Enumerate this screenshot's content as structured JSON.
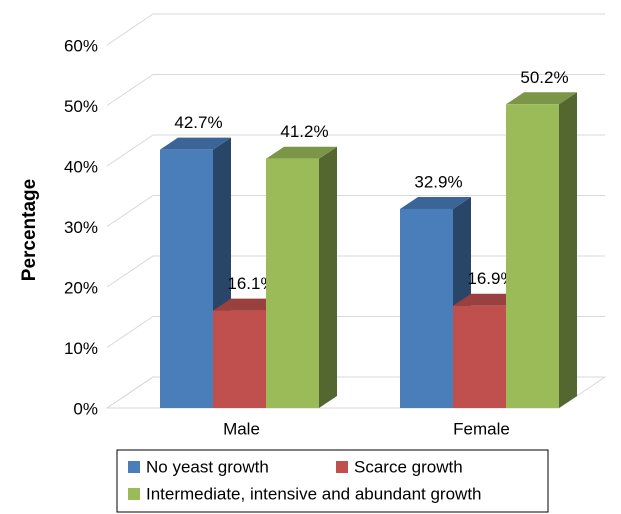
{
  "chart_data": {
    "type": "bar3d",
    "y_label": "Percentage",
    "categories": [
      "Male",
      "Female"
    ],
    "series": [
      {
        "name": "No yeast growth",
        "color": "#4a7ebb",
        "values": [
          42.7,
          32.9
        ],
        "value_labels": [
          "42.7%",
          "32.9%"
        ]
      },
      {
        "name": "Scarce growth",
        "color": "#c0504d",
        "values": [
          16.1,
          16.9
        ],
        "value_labels": [
          "16.1%",
          "16.9%"
        ]
      },
      {
        "name": "Intermediate, intensive and abundant growth",
        "color": "#9bbb59",
        "values": [
          41.2,
          50.2
        ],
        "value_labels": [
          "41.2%",
          "50.2%"
        ]
      }
    ],
    "ylim": [
      0,
      60
    ],
    "yticks": [
      {
        "value": 0,
        "label": "0%"
      },
      {
        "value": 10,
        "label": "10%"
      },
      {
        "value": 20,
        "label": "20%"
      },
      {
        "value": 30,
        "label": "30%"
      },
      {
        "value": 40,
        "label": "40%"
      },
      {
        "value": 50,
        "label": "50%"
      },
      {
        "value": 60,
        "label": "60%"
      }
    ],
    "grid": true
  }
}
